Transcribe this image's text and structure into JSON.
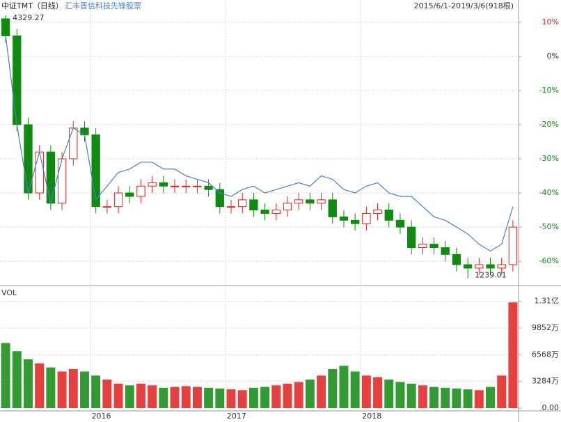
{
  "chart_data": {
    "type": "candlestick",
    "title": "中证TMT（日线）",
    "subtitle": "2015/6/1-2019/3/6(918根)",
    "volume_title": "VOL",
    "max_label": "4329.27",
    "min_label": "1239.01",
    "up_color": "#e02020",
    "down_color": "#108a10",
    "categories": [
      null,
      null,
      null,
      null,
      null,
      null,
      null,
      null,
      "2016",
      null,
      null,
      null,
      null,
      null,
      null,
      null,
      null,
      null,
      null,
      null,
      "2017",
      null,
      null,
      null,
      null,
      null,
      null,
      null,
      null,
      null,
      null,
      null,
      "2018",
      null,
      null,
      null,
      null,
      null,
      null,
      null,
      null,
      null,
      null,
      null,
      null,
      null
    ],
    "open": [
      11,
      6,
      -20,
      -40,
      -28,
      -43,
      -30,
      -21,
      -23,
      -44,
      -44,
      -40,
      -41,
      -38,
      -37,
      -38,
      -38,
      -38,
      -38,
      -39,
      -44,
      -44,
      -42,
      -45,
      -46,
      -45,
      -43,
      -42,
      -43,
      -42,
      -47,
      -48,
      -49,
      -46,
      -45,
      -48,
      -50,
      -56,
      -55,
      -56,
      -58,
      -61,
      -62,
      -61,
      -62,
      -61
    ],
    "close": [
      6,
      -20,
      -40,
      -28,
      -43,
      -30,
      -21,
      -23,
      -44,
      -44,
      -40,
      -41,
      -38,
      -37,
      -38,
      -38,
      -38,
      -38,
      -39,
      -44,
      -44,
      -42,
      -45,
      -46,
      -45,
      -43,
      -42,
      -43,
      -42,
      -47,
      -48,
      -49,
      -46,
      -45,
      -48,
      -50,
      -56,
      -55,
      -56,
      -58,
      -61,
      -62,
      -61,
      -62,
      -61,
      -50
    ],
    "high": [
      12,
      8,
      -18,
      -26,
      -26,
      -28,
      -19,
      -19,
      -21,
      -42,
      -38,
      -38,
      -36,
      -35,
      -35,
      -36,
      -36,
      -36,
      -36,
      -37,
      -42,
      -40,
      -40,
      -43,
      -43,
      -41,
      -40,
      -40,
      -40,
      -40,
      -45,
      -46,
      -44,
      -43,
      -43,
      -46,
      -48,
      -53,
      -53,
      -54,
      -56,
      -59,
      -59,
      -59,
      -59,
      -48
    ],
    "low": [
      4,
      -22,
      -42,
      -42,
      -45,
      -45,
      -32,
      -25,
      -46,
      -46,
      -46,
      -43,
      -43,
      -40,
      -40,
      -40,
      -40,
      -40,
      -41,
      -46,
      -46,
      -46,
      -47,
      -48,
      -48,
      -47,
      -45,
      -45,
      -45,
      -49,
      -50,
      -51,
      -51,
      -48,
      -50,
      -52,
      -58,
      -58,
      -58,
      -60,
      -63,
      -65,
      -64,
      -64,
      -64,
      -63
    ],
    "series": [
      {
        "name": "汇丰晋信科技先锋股票",
        "color": "#4a7fc4",
        "values": [
          6,
          -20,
          -40,
          -28,
          -43,
          -30,
          -21,
          -23,
          -42,
          -38,
          -34,
          -33,
          -31,
          -31,
          -33,
          -33,
          -35,
          -36,
          -37,
          -40,
          -41,
          -39,
          -38,
          -40,
          -39,
          -38,
          -37,
          -38,
          -35,
          -36,
          -39,
          -40,
          -38,
          -37,
          -40,
          -41,
          -41,
          -44,
          -47,
          -48,
          -50,
          -52,
          -55,
          -57,
          -55,
          -44
        ]
      }
    ],
    "ylim": [
      -67.1,
      16.5
    ],
    "yticks": [
      {
        "value": 10,
        "label": "10%",
        "color": "#d02020"
      },
      {
        "value": 0,
        "label": "0%",
        "color": "#333333"
      },
      {
        "value": -10,
        "label": "-10%",
        "color": "#108a10"
      },
      {
        "value": -20,
        "label": "-20%",
        "color": "#108a10"
      },
      {
        "value": -30,
        "label": "-30%",
        "color": "#108a10"
      },
      {
        "value": -40,
        "label": "-40%",
        "color": "#108a10"
      },
      {
        "value": -50,
        "label": "-50%",
        "color": "#108a10"
      },
      {
        "value": -60,
        "label": "-60%",
        "color": "#108a10"
      }
    ],
    "volume": [
      8000,
      7000,
      6000,
      5500,
      5000,
      4500,
      4800,
      4500,
      4000,
      3500,
      3000,
      2800,
      3000,
      2800,
      2500,
      2600,
      2700,
      2600,
      2500,
      2400,
      2300,
      2200,
      2500,
      2600,
      2800,
      3000,
      3200,
      3500,
      4000,
      4800,
      5200,
      4500,
      4000,
      3800,
      3500,
      3200,
      3000,
      2800,
      2600,
      2500,
      2400,
      2300,
      2200,
      2600,
      4000,
      13000
    ],
    "vlim": [
      0,
      14900
    ],
    "vticks": [
      {
        "value": 13136,
        "label": "1.31亿"
      },
      {
        "value": 9852,
        "label": "9852万"
      },
      {
        "value": 6568,
        "label": "6568万"
      },
      {
        "value": 3284,
        "label": "3284万"
      },
      {
        "value": 0,
        "label": "0.00"
      }
    ],
    "grid": true
  }
}
